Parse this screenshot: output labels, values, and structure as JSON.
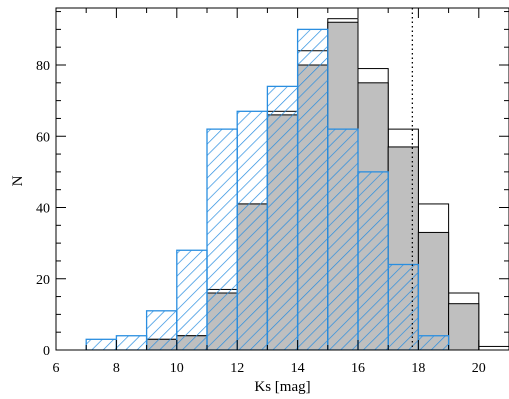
{
  "chart_data": {
    "type": "bar",
    "xlabel": "Ks [mag]",
    "ylabel": "N",
    "xlim": [
      6,
      21
    ],
    "ylim": [
      0,
      96
    ],
    "bin_width": 1,
    "bin_starts": [
      7,
      8,
      9,
      10,
      11,
      12,
      13,
      14,
      15,
      16,
      17,
      18,
      19,
      20
    ],
    "series": [
      {
        "style": "outline",
        "color": "#000000",
        "values": [
          0,
          0,
          3,
          4,
          17,
          41,
          67,
          84,
          93,
          79,
          62,
          41,
          16,
          1
        ]
      },
      {
        "style": "gray-filled",
        "color": "#bfbfbf",
        "values": [
          0,
          0,
          3,
          4,
          16,
          41,
          66,
          80,
          92,
          75,
          57,
          33,
          13,
          0
        ]
      },
      {
        "style": "blue-hatched",
        "color": "#2a8ee0",
        "values": [
          3,
          4,
          11,
          28,
          62,
          67,
          74,
          90,
          62,
          50,
          24,
          4,
          0,
          0
        ]
      }
    ],
    "vertical_line": {
      "x": 17.8,
      "style": "dotted",
      "color": "#000000"
    },
    "x_ticks": {
      "major": [
        "6",
        "8",
        "10",
        "12",
        "14",
        "16",
        "18",
        "20"
      ],
      "minor_step": 1
    },
    "y_ticks": {
      "major": [
        "0",
        "20",
        "40",
        "60",
        "80"
      ],
      "minor_step": 5
    },
    "grid": false,
    "legend": "none"
  }
}
